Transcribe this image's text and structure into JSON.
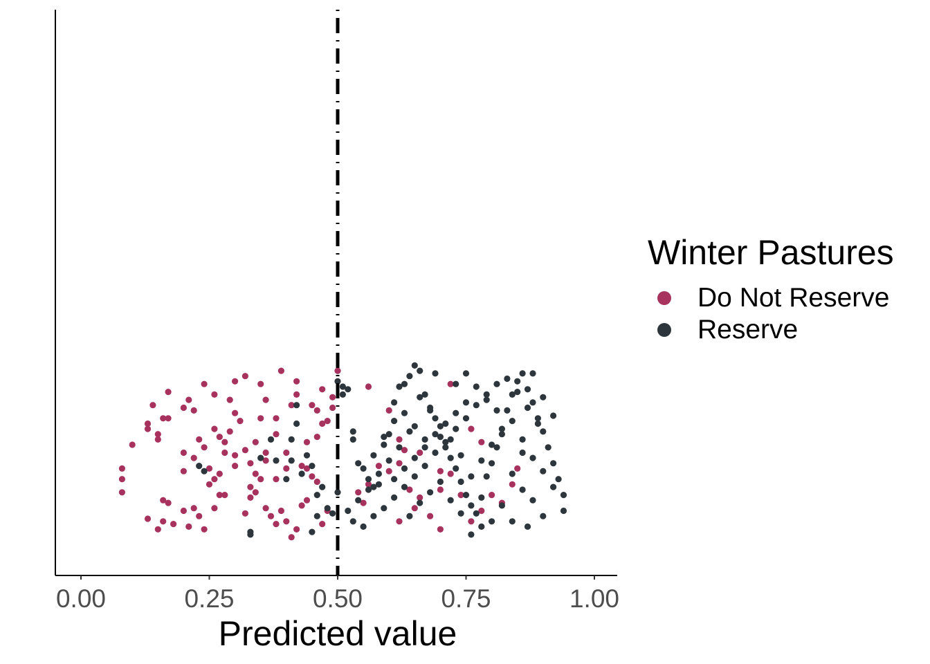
{
  "chart_data": {
    "type": "scatter",
    "title": "",
    "xlabel": "Predicted value",
    "ylabel": "",
    "xlim": [
      -0.05,
      1.05
    ],
    "x_ticks": [
      "0.00",
      "0.25",
      "0.50",
      "0.75",
      "1.00"
    ],
    "x_tick_values": [
      0,
      0.25,
      0.5,
      0.75,
      1.0
    ],
    "y_jitter": "vertical jitter around a single category (no y axis labels)",
    "threshold": {
      "x": 0.5,
      "style": "dotdash",
      "color": "#000000"
    },
    "grid": false,
    "legend": {
      "title": "Winter Pastures",
      "placement": "right",
      "entries": [
        {
          "label": "Do Not Reserve",
          "color": "#A8325E"
        },
        {
          "label": "Reserve",
          "color": "#2C363C"
        }
      ]
    },
    "series": [
      {
        "name": "Do Not Reserve",
        "color": "#A8325E",
        "points": [
          [
            0.08,
            0.3
          ],
          [
            0.08,
            0.26
          ],
          [
            0.08,
            0.21
          ],
          [
            0.1,
            0.39
          ],
          [
            0.13,
            0.45
          ],
          [
            0.13,
            0.47
          ],
          [
            0.15,
            0.41
          ],
          [
            0.15,
            0.43
          ],
          [
            0.17,
            0.59
          ],
          [
            0.16,
            0.49
          ],
          [
            0.17,
            0.49
          ],
          [
            0.14,
            0.54
          ],
          [
            0.15,
            0.07
          ],
          [
            0.13,
            0.11
          ],
          [
            0.16,
            0.1
          ],
          [
            0.17,
            0.17
          ],
          [
            0.16,
            0.18
          ],
          [
            0.18,
            0.09
          ],
          [
            0.2,
            0.29
          ],
          [
            0.2,
            0.14
          ],
          [
            0.21,
            0.08
          ],
          [
            0.22,
            0.15
          ],
          [
            0.23,
            0.12
          ],
          [
            0.24,
            0.07
          ],
          [
            0.23,
            0.41
          ],
          [
            0.24,
            0.38
          ],
          [
            0.25,
            0.3
          ],
          [
            0.26,
            0.26
          ],
          [
            0.27,
            0.2
          ],
          [
            0.26,
            0.15
          ],
          [
            0.28,
            0.2
          ],
          [
            0.27,
            0.28
          ],
          [
            0.28,
            0.36
          ],
          [
            0.3,
            0.31
          ],
          [
            0.3,
            0.35
          ],
          [
            0.29,
            0.44
          ],
          [
            0.31,
            0.48
          ],
          [
            0.3,
            0.51
          ],
          [
            0.32,
            0.13
          ],
          [
            0.33,
            0.19
          ],
          [
            0.33,
            0.23
          ],
          [
            0.33,
            0.32
          ],
          [
            0.34,
            0.28
          ],
          [
            0.35,
            0.26
          ],
          [
            0.36,
            0.36
          ],
          [
            0.34,
            0.4
          ],
          [
            0.35,
            0.49
          ],
          [
            0.38,
            0.43
          ],
          [
            0.38,
            0.49
          ],
          [
            0.36,
            0.15
          ],
          [
            0.37,
            0.12
          ],
          [
            0.38,
            0.09
          ],
          [
            0.39,
            0.14
          ],
          [
            0.4,
            0.1
          ],
          [
            0.42,
            0.07
          ],
          [
            0.41,
            0.04
          ],
          [
            0.43,
            0.16
          ],
          [
            0.44,
            0.18
          ],
          [
            0.44,
            0.3
          ],
          [
            0.45,
            0.27
          ],
          [
            0.46,
            0.42
          ],
          [
            0.47,
            0.47
          ],
          [
            0.46,
            0.52
          ],
          [
            0.48,
            0.48
          ],
          [
            0.49,
            0.53
          ],
          [
            0.49,
            0.57
          ],
          [
            0.47,
            0.6
          ],
          [
            0.45,
            0.54
          ],
          [
            0.48,
            0.14
          ],
          [
            0.47,
            0.09
          ],
          [
            0.2,
            0.53
          ],
          [
            0.21,
            0.56
          ],
          [
            0.24,
            0.62
          ],
          [
            0.26,
            0.58
          ],
          [
            0.29,
            0.56
          ],
          [
            0.32,
            0.65
          ],
          [
            0.35,
            0.62
          ],
          [
            0.39,
            0.67
          ],
          [
            0.42,
            0.63
          ],
          [
            0.41,
            0.54
          ],
          [
            0.2,
            0.36
          ],
          [
            0.22,
            0.52
          ],
          [
            0.26,
            0.45
          ],
          [
            0.28,
            0.4
          ],
          [
            0.32,
            0.37
          ],
          [
            0.36,
            0.33
          ],
          [
            0.4,
            0.3
          ],
          [
            0.44,
            0.4
          ],
          [
            0.43,
            0.31
          ],
          [
            0.38,
            0.26
          ],
          [
            0.54,
            0.21
          ],
          [
            0.55,
            0.17
          ],
          [
            0.56,
            0.24
          ],
          [
            0.58,
            0.31
          ],
          [
            0.6,
            0.29
          ],
          [
            0.62,
            0.32
          ],
          [
            0.63,
            0.37
          ],
          [
            0.64,
            0.22
          ],
          [
            0.65,
            0.15
          ],
          [
            0.66,
            0.19
          ],
          [
            0.68,
            0.12
          ],
          [
            0.7,
            0.22
          ],
          [
            0.72,
            0.28
          ],
          [
            0.74,
            0.2
          ],
          [
            0.76,
            0.1
          ],
          [
            0.78,
            0.14
          ],
          [
            0.8,
            0.2
          ],
          [
            0.82,
            0.17
          ],
          [
            0.84,
            0.24
          ],
          [
            0.85,
            0.3
          ],
          [
            0.56,
            0.61
          ],
          [
            0.6,
            0.52
          ],
          [
            0.62,
            0.41
          ],
          [
            0.66,
            0.36
          ],
          [
            0.7,
            0.29
          ],
          [
            0.72,
            0.62
          ],
          [
            0.76,
            0.45
          ],
          [
            0.78,
            0.4
          ],
          [
            0.62,
            0.1
          ],
          [
            0.7,
            0.07
          ],
          [
            0.27,
            0.42
          ],
          [
            0.3,
            0.63
          ],
          [
            0.25,
            0.24
          ],
          [
            0.22,
            0.34
          ],
          [
            0.34,
            0.21
          ],
          [
            0.4,
            0.36
          ],
          [
            0.5,
            0.67
          ],
          [
            0.46,
            0.25
          ],
          [
            0.42,
            0.58
          ],
          [
            0.36,
            0.56
          ]
        ]
      },
      {
        "name": "Reserve",
        "color": "#2C363C",
        "points": [
          [
            0.23,
            0.31
          ],
          [
            0.24,
            0.29
          ],
          [
            0.33,
            0.05
          ],
          [
            0.33,
            0.06
          ],
          [
            0.35,
            0.34
          ],
          [
            0.37,
            0.41
          ],
          [
            0.38,
            0.33
          ],
          [
            0.4,
            0.26
          ],
          [
            0.41,
            0.33
          ],
          [
            0.41,
            0.41
          ],
          [
            0.42,
            0.47
          ],
          [
            0.42,
            0.54
          ],
          [
            0.43,
            0.28
          ],
          [
            0.44,
            0.35
          ],
          [
            0.45,
            0.31
          ],
          [
            0.46,
            0.2
          ],
          [
            0.47,
            0.23
          ],
          [
            0.46,
            0.12
          ],
          [
            0.45,
            0.06
          ],
          [
            0.48,
            0.15
          ],
          [
            0.49,
            0.13
          ],
          [
            0.5,
            0.21
          ],
          [
            0.51,
            0.58
          ],
          [
            0.51,
            0.61
          ],
          [
            0.5,
            0.63
          ],
          [
            0.52,
            0.6
          ],
          [
            0.53,
            0.44
          ],
          [
            0.53,
            0.41
          ],
          [
            0.54,
            0.32
          ],
          [
            0.55,
            0.3
          ],
          [
            0.56,
            0.26
          ],
          [
            0.57,
            0.23
          ],
          [
            0.58,
            0.24
          ],
          [
            0.59,
            0.39
          ],
          [
            0.6,
            0.43
          ],
          [
            0.61,
            0.48
          ],
          [
            0.62,
            0.61
          ],
          [
            0.63,
            0.62
          ],
          [
            0.64,
            0.65
          ],
          [
            0.65,
            0.69
          ],
          [
            0.66,
            0.67
          ],
          [
            0.67,
            0.58
          ],
          [
            0.68,
            0.53
          ],
          [
            0.69,
            0.49
          ],
          [
            0.7,
            0.42
          ],
          [
            0.71,
            0.38
          ],
          [
            0.72,
            0.34
          ],
          [
            0.73,
            0.3
          ],
          [
            0.74,
            0.25
          ],
          [
            0.75,
            0.2
          ],
          [
            0.76,
            0.16
          ],
          [
            0.77,
            0.13
          ],
          [
            0.78,
            0.19
          ],
          [
            0.79,
            0.27
          ],
          [
            0.8,
            0.32
          ],
          [
            0.81,
            0.38
          ],
          [
            0.82,
            0.45
          ],
          [
            0.83,
            0.52
          ],
          [
            0.84,
            0.58
          ],
          [
            0.85,
            0.63
          ],
          [
            0.86,
            0.66
          ],
          [
            0.87,
            0.6
          ],
          [
            0.88,
            0.55
          ],
          [
            0.89,
            0.49
          ],
          [
            0.9,
            0.44
          ],
          [
            0.91,
            0.38
          ],
          [
            0.92,
            0.32
          ],
          [
            0.93,
            0.26
          ],
          [
            0.94,
            0.2
          ],
          [
            0.94,
            0.14
          ],
          [
            0.92,
            0.5
          ],
          [
            0.9,
            0.57
          ],
          [
            0.88,
            0.66
          ],
          [
            0.86,
            0.36
          ],
          [
            0.84,
            0.28
          ],
          [
            0.82,
            0.16
          ],
          [
            0.8,
            0.1
          ],
          [
            0.78,
            0.08
          ],
          [
            0.76,
            0.05
          ],
          [
            0.74,
            0.35
          ],
          [
            0.72,
            0.41
          ],
          [
            0.7,
            0.46
          ],
          [
            0.68,
            0.52
          ],
          [
            0.66,
            0.57
          ],
          [
            0.64,
            0.44
          ],
          [
            0.62,
            0.38
          ],
          [
            0.6,
            0.33
          ],
          [
            0.58,
            0.28
          ],
          [
            0.56,
            0.22
          ],
          [
            0.54,
            0.18
          ],
          [
            0.52,
            0.14
          ],
          [
            0.53,
            0.1
          ],
          [
            0.55,
            0.08
          ],
          [
            0.57,
            0.12
          ],
          [
            0.59,
            0.15
          ],
          [
            0.61,
            0.19
          ],
          [
            0.63,
            0.23
          ],
          [
            0.65,
            0.27
          ],
          [
            0.67,
            0.31
          ],
          [
            0.69,
            0.36
          ],
          [
            0.71,
            0.4
          ],
          [
            0.73,
            0.45
          ],
          [
            0.75,
            0.49
          ],
          [
            0.77,
            0.54
          ],
          [
            0.79,
            0.58
          ],
          [
            0.81,
            0.62
          ],
          [
            0.83,
            0.64
          ],
          [
            0.85,
            0.59
          ],
          [
            0.87,
            0.53
          ],
          [
            0.89,
            0.47
          ],
          [
            0.64,
            0.12
          ],
          [
            0.66,
            0.17
          ],
          [
            0.68,
            0.21
          ],
          [
            0.7,
            0.25
          ],
          [
            0.72,
            0.18
          ],
          [
            0.74,
            0.13
          ],
          [
            0.76,
            0.27
          ],
          [
            0.78,
            0.33
          ],
          [
            0.8,
            0.39
          ],
          [
            0.82,
            0.43
          ],
          [
            0.84,
            0.48
          ],
          [
            0.86,
            0.41
          ],
          [
            0.88,
            0.34
          ],
          [
            0.9,
            0.29
          ],
          [
            0.92,
            0.23
          ],
          [
            0.88,
            0.18
          ],
          [
            0.86,
            0.22
          ],
          [
            0.84,
            0.1
          ],
          [
            0.87,
            0.08
          ],
          [
            0.9,
            0.12
          ],
          [
            0.61,
            0.55
          ],
          [
            0.63,
            0.51
          ],
          [
            0.65,
            0.46
          ],
          [
            0.67,
            0.41
          ],
          [
            0.69,
            0.66
          ],
          [
            0.73,
            0.62
          ],
          [
            0.75,
            0.66
          ],
          [
            0.77,
            0.61
          ],
          [
            0.79,
            0.56
          ],
          [
            0.81,
            0.52
          ],
          [
            0.57,
            0.35
          ],
          [
            0.59,
            0.42
          ],
          [
            0.61,
            0.26
          ],
          [
            0.63,
            0.3
          ],
          [
            0.65,
            0.34
          ],
          [
            0.67,
            0.38
          ],
          [
            0.69,
            0.43
          ],
          [
            0.71,
            0.47
          ],
          [
            0.73,
            0.51
          ],
          [
            0.75,
            0.55
          ]
        ]
      }
    ]
  }
}
